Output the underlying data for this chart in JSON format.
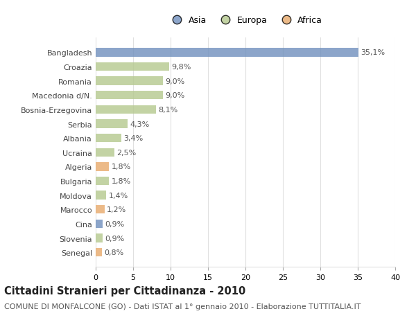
{
  "categories": [
    "Bangladesh",
    "Croazia",
    "Romania",
    "Macedonia d/N.",
    "Bosnia-Erzegovina",
    "Serbia",
    "Albania",
    "Ucraina",
    "Algeria",
    "Bulgaria",
    "Moldova",
    "Marocco",
    "Cina",
    "Slovenia",
    "Senegal"
  ],
  "values": [
    35.1,
    9.8,
    9.0,
    9.0,
    8.1,
    4.3,
    3.4,
    2.5,
    1.8,
    1.8,
    1.4,
    1.2,
    0.9,
    0.9,
    0.8
  ],
  "labels": [
    "35,1%",
    "9,8%",
    "9,0%",
    "9,0%",
    "8,1%",
    "4,3%",
    "3,4%",
    "2,5%",
    "1,8%",
    "1,8%",
    "1,4%",
    "1,2%",
    "0,9%",
    "0,9%",
    "0,8%"
  ],
  "continents": [
    "Asia",
    "Europa",
    "Europa",
    "Europa",
    "Europa",
    "Europa",
    "Europa",
    "Europa",
    "Africa",
    "Europa",
    "Europa",
    "Africa",
    "Asia",
    "Europa",
    "Africa"
  ],
  "colors": {
    "Asia": "#6f8fbd",
    "Europa": "#b5c98e",
    "Africa": "#e8a96b"
  },
  "legend_order": [
    "Asia",
    "Europa",
    "Africa"
  ],
  "legend_colors": [
    "#6f8fbd",
    "#b5c98e",
    "#e8a96b"
  ],
  "title": "Cittadini Stranieri per Cittadinanza - 2010",
  "subtitle": "COMUNE DI MONFALCONE (GO) - Dati ISTAT al 1° gennaio 2010 - Elaborazione TUTTITALIA.IT",
  "xlim": [
    0,
    40
  ],
  "xticks": [
    0,
    5,
    10,
    15,
    20,
    25,
    30,
    35,
    40
  ],
  "background_color": "#ffffff",
  "grid_color": "#e0e0e0",
  "bar_alpha": 0.8,
  "title_fontsize": 10.5,
  "subtitle_fontsize": 8,
  "label_fontsize": 8,
  "tick_fontsize": 8,
  "legend_fontsize": 9
}
